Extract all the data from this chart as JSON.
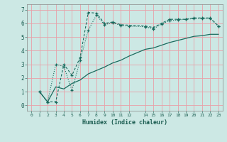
{
  "xlabel": "Humidex (Indice chaleur)",
  "bg_color": "#cce8e4",
  "grid_color": "#e8a0a8",
  "line_color": "#1a6b5e",
  "xlim": [
    -0.5,
    23.5
  ],
  "ylim": [
    -0.4,
    7.4
  ],
  "x_ticks": [
    0,
    1,
    2,
    3,
    4,
    5,
    6,
    7,
    8,
    9,
    10,
    11,
    12,
    14,
    15,
    16,
    17,
    18,
    19,
    20,
    21,
    22,
    23
  ],
  "x_tick_labels": [
    "0",
    "1",
    "2",
    "3",
    "4",
    "5",
    "6",
    "7",
    "8",
    "9",
    "10",
    "11",
    "12",
    "14",
    "15",
    "16",
    "17",
    "18",
    "19",
    "20",
    "21",
    "22",
    "23"
  ],
  "y_ticks": [
    0,
    1,
    2,
    3,
    4,
    5,
    6,
    7
  ],
  "line1_x": [
    1,
    2,
    3,
    4,
    5,
    6,
    7,
    8,
    9,
    10,
    11,
    14,
    15,
    16,
    17,
    18,
    19,
    20,
    21,
    22,
    23
  ],
  "line1_y": [
    1.0,
    0.25,
    0.25,
    3.0,
    2.2,
    3.5,
    6.8,
    6.75,
    6.0,
    6.1,
    5.9,
    5.8,
    5.7,
    6.0,
    6.3,
    6.3,
    6.3,
    6.4,
    6.4,
    6.4,
    5.8
  ],
  "line2_x": [
    1,
    2,
    3,
    4,
    5,
    6,
    7,
    8,
    9,
    10,
    11,
    12,
    14,
    15,
    16,
    17,
    18,
    19,
    20,
    21,
    22,
    23
  ],
  "line2_y": [
    1.0,
    0.25,
    3.0,
    2.85,
    1.1,
    3.3,
    5.5,
    6.6,
    5.9,
    6.05,
    5.85,
    5.8,
    5.75,
    5.6,
    5.95,
    6.2,
    6.25,
    6.3,
    6.35,
    6.35,
    6.35,
    5.8
  ],
  "line3_x": [
    1,
    2,
    3,
    4,
    5,
    6,
    7,
    8,
    9,
    10,
    11,
    12,
    14,
    15,
    16,
    17,
    18,
    19,
    20,
    21,
    22,
    23
  ],
  "line3_y": [
    1.0,
    0.25,
    1.35,
    1.2,
    1.6,
    1.85,
    2.3,
    2.55,
    2.8,
    3.1,
    3.3,
    3.6,
    4.1,
    4.2,
    4.4,
    4.6,
    4.75,
    4.9,
    5.05,
    5.1,
    5.2,
    5.2
  ]
}
